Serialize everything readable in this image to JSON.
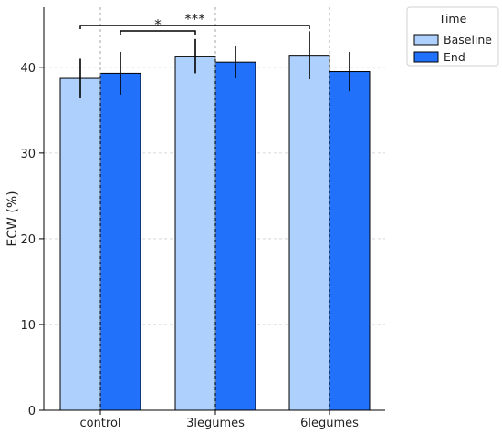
{
  "chart_data": {
    "type": "bar",
    "categories": [
      "control",
      "3legumes",
      "6legumes"
    ],
    "ylabel": "ECW (%)",
    "ylim": [
      0,
      47
    ],
    "yticks": [
      0,
      10,
      20,
      30,
      40
    ],
    "grid": true,
    "series": [
      {
        "name": "Baseline",
        "color": "#aed0fc",
        "values": [
          38.7,
          41.3,
          41.4
        ],
        "errors": [
          2.3,
          2.0,
          2.8
        ]
      },
      {
        "name": "End",
        "color": "#2271fa",
        "values": [
          39.3,
          40.6,
          39.5
        ],
        "errors": [
          2.5,
          1.9,
          2.3
        ]
      }
    ],
    "legend": {
      "title": "Time",
      "placement": "outside-top-right"
    },
    "annotations": [
      {
        "text": "*",
        "from": "control End",
        "to": "3legumes Baseline"
      },
      {
        "text": "***",
        "from": "control Baseline",
        "to": "6legumes Baseline"
      }
    ]
  }
}
